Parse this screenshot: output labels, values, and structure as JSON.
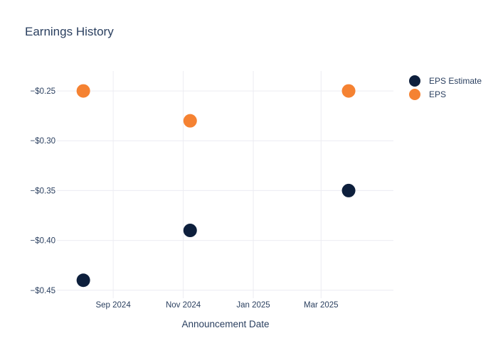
{
  "chart_data": {
    "type": "scatter",
    "title": "Earnings History",
    "xlabel": "Announcement Date",
    "ylabel": "",
    "xlim": [
      "2024-07-14",
      "2025-05-03"
    ],
    "ylim": [
      -0.458,
      -0.23
    ],
    "x_ticks": [
      {
        "date": "2024-09-01",
        "label": "Sep 2024"
      },
      {
        "date": "2024-11-01",
        "label": "Nov 2024"
      },
      {
        "date": "2025-01-01",
        "label": "Jan 2025"
      },
      {
        "date": "2025-03-01",
        "label": "Mar 2025"
      }
    ],
    "y_ticks": [
      {
        "value": -0.25,
        "label": "−$0.25"
      },
      {
        "value": -0.3,
        "label": "−$0.30"
      },
      {
        "value": -0.35,
        "label": "−$0.35"
      },
      {
        "value": -0.4,
        "label": "−$0.40"
      },
      {
        "value": -0.45,
        "label": "−$0.45"
      }
    ],
    "grid": true,
    "legend_position": "top-right",
    "series": [
      {
        "name": "EPS Estimate",
        "color": "#0d1f3c",
        "points": [
          {
            "x": "2024-08-06",
            "y": -0.44
          },
          {
            "x": "2024-11-07",
            "y": -0.39
          },
          {
            "x": "2025-03-25",
            "y": -0.35
          }
        ]
      },
      {
        "name": "EPS",
        "color": "#f58232",
        "points": [
          {
            "x": "2024-08-06",
            "y": -0.25
          },
          {
            "x": "2024-11-07",
            "y": -0.28
          },
          {
            "x": "2025-03-25",
            "y": -0.25
          }
        ]
      }
    ]
  }
}
